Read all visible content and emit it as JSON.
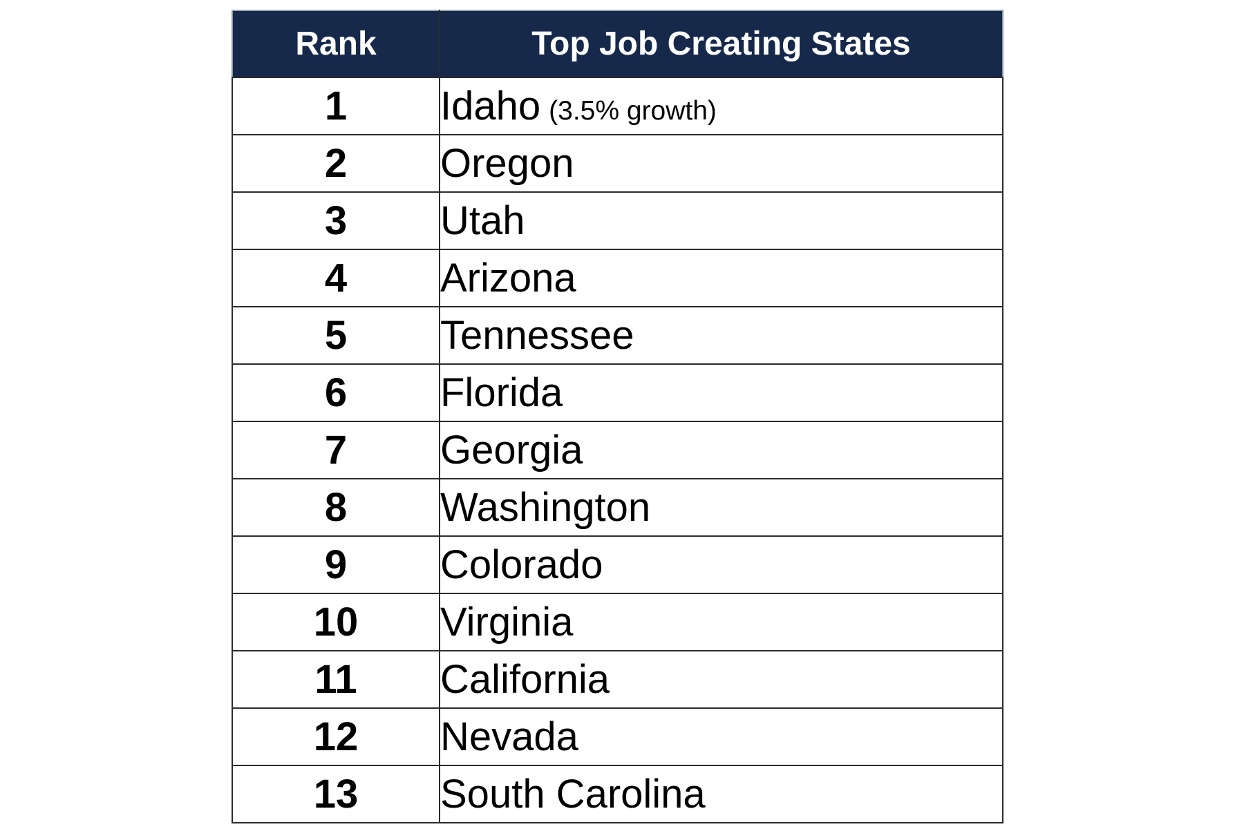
{
  "table": {
    "header": {
      "rank": "Rank",
      "states": "Top Job Creating States"
    },
    "rows": [
      {
        "rank": "1",
        "state": "Idaho",
        "note": "(3.5% growth)"
      },
      {
        "rank": "2",
        "state": "Oregon"
      },
      {
        "rank": "3",
        "state": "Utah"
      },
      {
        "rank": "4",
        "state": "Arizona"
      },
      {
        "rank": "5",
        "state": "Tennessee"
      },
      {
        "rank": "6",
        "state": "Florida"
      },
      {
        "rank": "7",
        "state": "Georgia"
      },
      {
        "rank": "8",
        "state": "Washington"
      },
      {
        "rank": "9",
        "state": "Colorado"
      },
      {
        "rank": "10",
        "state": "Virginia"
      },
      {
        "rank": "11",
        "state": "California"
      },
      {
        "rank": "12",
        "state": "Nevada"
      },
      {
        "rank": "13",
        "state": "South Carolina"
      }
    ],
    "colors": {
      "header_bg": "#16294A",
      "header_text": "#FFFFFF",
      "body_text": "#000000",
      "border": "#2B2B2B",
      "header_edge_light": "#9EA6B4",
      "row_bg": "#FFFFFF"
    }
  },
  "chart_data": {
    "type": "table",
    "title": "Top Job Creating States",
    "columns": [
      "Rank",
      "Top Job Creating States"
    ],
    "rows": [
      [
        "1",
        "Idaho (3.5% growth)"
      ],
      [
        "2",
        "Oregon"
      ],
      [
        "3",
        "Utah"
      ],
      [
        "4",
        "Arizona"
      ],
      [
        "5",
        "Tennessee"
      ],
      [
        "6",
        "Florida"
      ],
      [
        "7",
        "Georgia"
      ],
      [
        "8",
        "Washington"
      ],
      [
        "9",
        "Colorado"
      ],
      [
        "10",
        "Virginia"
      ],
      [
        "11",
        "California"
      ],
      [
        "12",
        "Nevada"
      ],
      [
        "13",
        "South Carolina"
      ]
    ],
    "annotations": [
      "Idaho job growth rate: 3.5%"
    ],
    "layout": {
      "header_fill": "#16294A",
      "header_text_color": "#FFFFFF",
      "grid": true
    }
  }
}
